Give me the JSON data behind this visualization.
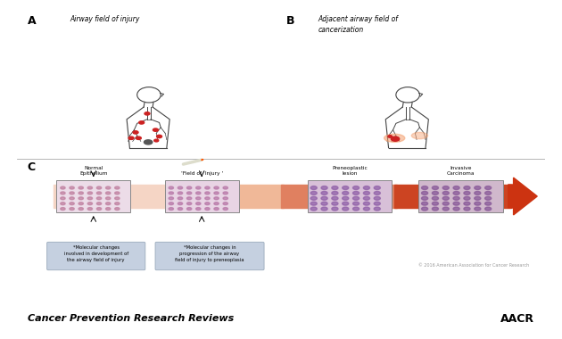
{
  "panel_a_label": "A",
  "panel_b_label": "B",
  "panel_c_label": "C",
  "panel_a_title": "Airway field of injury",
  "panel_b_title": "Adjacent airway field of\ncancerization",
  "c_labels": [
    "Normal\nEpithelium",
    "'Field of  Injury '",
    "Preneoplastic\nlesion",
    "Invasive\nCarcinoma"
  ],
  "c_note1": "*Molecular changes\ninvolved in development of\nthe airway field of injury",
  "c_note2": "*Molecular changes in\nprogression of the airway\nfield of injury to preneoplasia",
  "copyright": "© 2016 American Association for Cancer Research",
  "footer_left": "Cancer Prevention Research Reviews",
  "footer_right": "AACR",
  "bg_color": "#d8dce8",
  "outer_bg": "#ffffff",
  "note_bg": "#c5d0e0",
  "footer_bg": "#ffffff",
  "gradient_colors": [
    "#f5d5c5",
    "#f0b898",
    "#e08060",
    "#cc4422"
  ],
  "arrow_red": "#cc3311"
}
